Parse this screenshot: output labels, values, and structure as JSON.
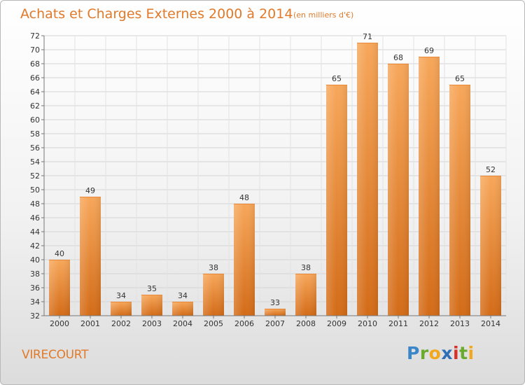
{
  "title": "Achats et Charges Externes 2000 à 2014",
  "subtitle": "(en milliers d'€)",
  "place": "VIRECOURT",
  "logo": {
    "letters": [
      "P",
      "r",
      "o",
      "x",
      "i",
      "t",
      "i"
    ],
    "colors": [
      "#3a86c8",
      "#6aaa2e",
      "#f2a81d",
      "#2e6fb5",
      "#d9302a",
      "#6aaa2e",
      "#f2a81d"
    ]
  },
  "colors": {
    "bar_top": "#f7a75a",
    "bar_bottom": "#d36b17",
    "text_accent": "#e07a2a"
  },
  "chart_data": {
    "type": "bar",
    "categories": [
      "2000",
      "2001",
      "2002",
      "2003",
      "2004",
      "2005",
      "2006",
      "2007",
      "2008",
      "2009",
      "2010",
      "2011",
      "2012",
      "2013",
      "2014"
    ],
    "values": [
      40,
      49,
      34,
      35,
      34,
      38,
      48,
      33,
      38,
      65,
      71,
      68,
      69,
      65,
      52
    ],
    "title": "Achats et Charges Externes 2000 à 2014",
    "ylim": [
      32,
      72
    ],
    "yticks": [
      32,
      34,
      36,
      38,
      40,
      42,
      44,
      46,
      48,
      50,
      52,
      54,
      56,
      58,
      60,
      62,
      64,
      66,
      68,
      70,
      72
    ],
    "grid": true,
    "legend": "none"
  }
}
